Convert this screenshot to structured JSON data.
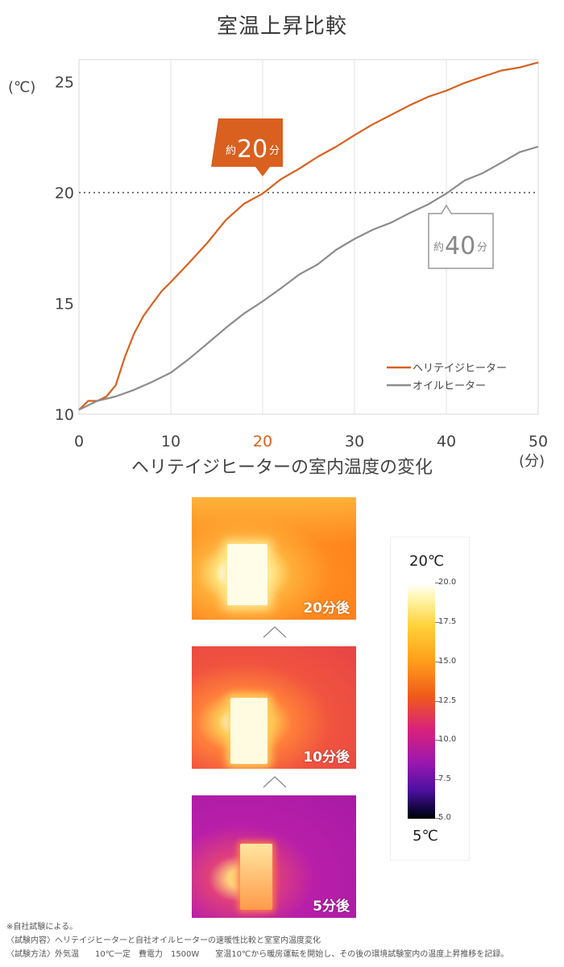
{
  "title": "室温上昇比較",
  "chart_data": {
    "type": "line",
    "title": "室温上昇比較",
    "xlabel": "ヘリテイジヒーターの室内温度の変化",
    "ylabel": "(℃)",
    "x_unit": "(分)",
    "xlim": [
      0,
      50
    ],
    "ylim": [
      10,
      26
    ],
    "x_ticks": [
      "0",
      "10",
      "20",
      "30",
      "40",
      "50"
    ],
    "y_ticks": [
      "10",
      "15",
      "20",
      "25"
    ],
    "highlight_x_tick": "20",
    "reference_line_y": 20,
    "legend_position": "bottom-right",
    "series": [
      {
        "name": "ヘリテイジヒーター",
        "color": "#d9601f",
        "x": [
          0,
          1,
          2,
          3,
          4,
          5,
          6,
          7,
          8,
          9,
          10,
          12,
          14,
          16,
          18,
          20,
          22,
          24,
          26,
          28,
          30,
          32,
          34,
          36,
          38,
          40,
          42,
          44,
          46,
          48,
          50
        ],
        "y": [
          10.2,
          10.6,
          10.6,
          10.8,
          11.3,
          12.6,
          13.6,
          14.4,
          15.0,
          15.6,
          16.0,
          16.8,
          17.8,
          18.8,
          19.5,
          20.0,
          20.6,
          21.1,
          21.6,
          22.1,
          22.6,
          23.1,
          23.5,
          23.9,
          24.3,
          24.6,
          24.9,
          25.2,
          25.5,
          25.7,
          25.9
        ]
      },
      {
        "name": "オイルヒーター",
        "color": "#8c8c8c",
        "x": [
          0,
          2,
          4,
          6,
          8,
          10,
          12,
          14,
          16,
          18,
          20,
          22,
          24,
          26,
          28,
          30,
          32,
          34,
          36,
          38,
          40,
          42,
          44,
          46,
          48,
          50
        ],
        "y": [
          10.2,
          10.6,
          10.8,
          11.1,
          11.5,
          11.9,
          12.5,
          13.2,
          13.9,
          14.5,
          15.1,
          15.7,
          16.3,
          16.8,
          17.4,
          17.9,
          18.3,
          18.7,
          19.1,
          19.5,
          20.0,
          20.5,
          20.9,
          21.4,
          21.8,
          22.1
        ]
      }
    ],
    "annotations": [
      {
        "text_prefix": "約",
        "value": "20",
        "unit": "分",
        "x": 20,
        "y": 20,
        "color": "#d9601f"
      },
      {
        "text_prefix": "約",
        "value": "40",
        "unit": "分",
        "x": 40,
        "y": 20,
        "color": "#999999"
      }
    ]
  },
  "thermal_images": [
    {
      "label": "20分後"
    },
    {
      "label": "10分後"
    },
    {
      "label": "5分後"
    }
  ],
  "color_scale": {
    "top_label": "20℃",
    "bottom_label": "5℃",
    "ticks": [
      "20.0",
      "17.5",
      "15.0",
      "12.5",
      "10.0",
      "7.5",
      "5.0"
    ]
  },
  "notes": [
    "※自社試験による。",
    "〈試験内容〉ヘリテイジヒーターと自社オイルヒーターの速暖性比較と室室内温度変化",
    "〈試験方法〉外気温　　10℃一定　費電力　1500W　　室温10℃から暖房運転を開始し、その後の環境試験室内の温度上昇推移を記録。"
  ]
}
